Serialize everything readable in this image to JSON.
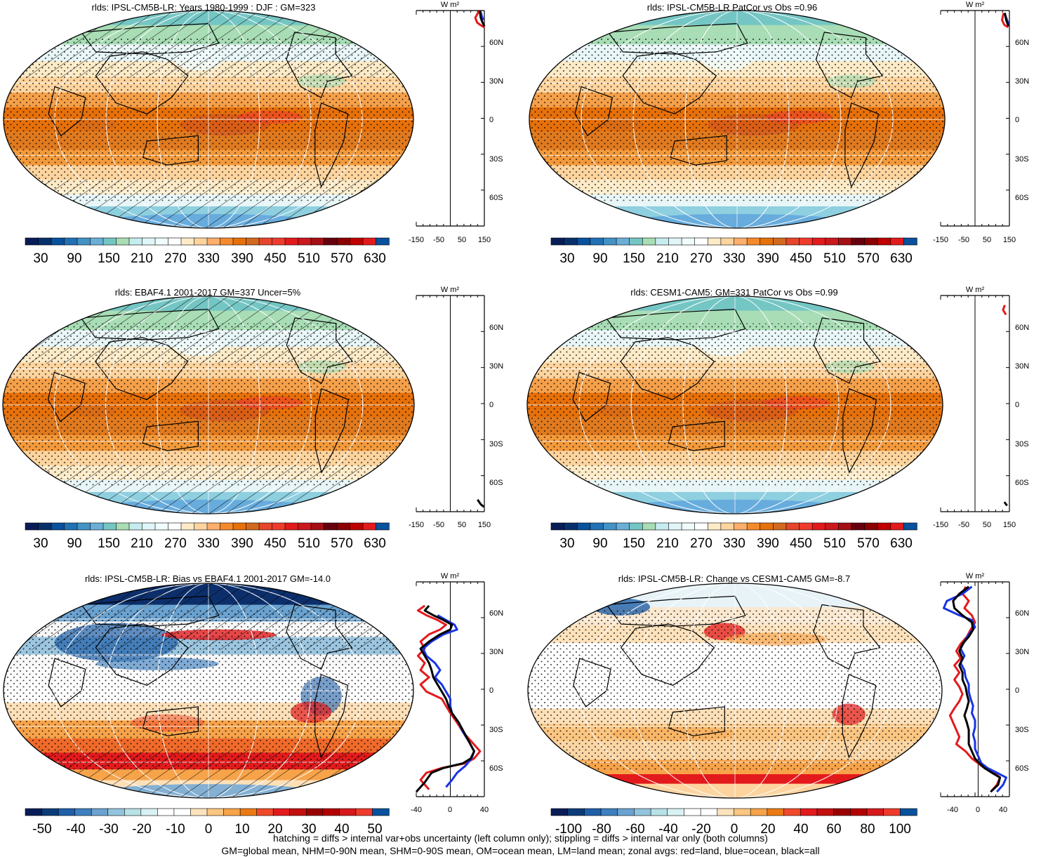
{
  "chart_data": [
    {
      "type": "map",
      "title": "rlds: IPSL-CM5B-LR: Years 1980-1999 : DJF : GM=323",
      "colorbar_labels": [
        "30",
        "90",
        "150",
        "210",
        "270",
        "330",
        "390",
        "450",
        "510",
        "570",
        "630"
      ],
      "zonal_axis": {
        "unit": "W m²",
        "x_ticks": [
          "-150",
          "-50",
          "50",
          "150"
        ],
        "xlim": [
          -150,
          150
        ]
      },
      "zonal_series": [
        {
          "color": "#e31a1c",
          "points": [
            [
              128,
              90
            ],
            [
              110,
              84
            ],
            [
              118,
              80
            ],
            [
              132,
              78
            ],
            [
              150,
              76
            ]
          ]
        },
        {
          "color": "#1a33e6",
          "points": [
            [
              132,
              90
            ],
            [
              138,
              86
            ],
            [
              145,
              82
            ]
          ]
        },
        {
          "color": "#000000",
          "points": [
            [
              130,
              90
            ],
            [
              134,
              84
            ],
            [
              142,
              80
            ],
            [
              150,
              77
            ]
          ]
        }
      ]
    },
    {
      "type": "map",
      "title": "rlds: IPSL-CM5B-LR PatCor vs Obs =0.96",
      "colorbar_labels": [
        "30",
        "90",
        "150",
        "210",
        "270",
        "330",
        "390",
        "450",
        "510",
        "570",
        "630"
      ],
      "zonal_axis": {
        "unit": "W m²",
        "x_ticks": [
          "-150",
          "-50",
          "50",
          "150"
        ],
        "xlim": [
          -150,
          150
        ]
      },
      "zonal_series": [
        {
          "color": "#e31a1c",
          "points": [
            [
              125,
              88
            ],
            [
              118,
              82
            ],
            [
              128,
              78
            ],
            [
              145,
              76
            ]
          ]
        },
        {
          "color": "#1a33e6",
          "points": [
            [
              132,
              86
            ],
            [
              140,
              82
            ],
            [
              148,
              78
            ]
          ]
        },
        {
          "color": "#000000",
          "points": [
            [
              130,
              88
            ],
            [
              136,
              82
            ],
            [
              146,
              77
            ]
          ]
        }
      ]
    },
    {
      "type": "map",
      "title": "rlds: EBAF4.1 2001-2017 GM=337 Uncer=5%",
      "colorbar_labels": [
        "30",
        "90",
        "150",
        "210",
        "270",
        "330",
        "390",
        "450",
        "510",
        "570",
        "630"
      ],
      "zonal_axis": {
        "unit": "W m²",
        "x_ticks": [
          "-150",
          "-50",
          "50",
          "150"
        ],
        "xlim": [
          -150,
          150
        ]
      },
      "zonal_series": [
        {
          "color": "#000000",
          "points": [
            [
              120,
              -80
            ],
            [
              135,
              -84
            ],
            [
              148,
              -86
            ]
          ]
        }
      ]
    },
    {
      "type": "map",
      "title": "rlds: CESM1-CAM5: GM=331 PatCor vs Obs =0.99",
      "colorbar_labels": [
        "30",
        "90",
        "150",
        "210",
        "270",
        "330",
        "390",
        "450",
        "510",
        "570",
        "630"
      ],
      "zonal_axis": {
        "unit": "W m²",
        "x_ticks": [
          "-150",
          "-50",
          "50",
          "150"
        ],
        "xlim": [
          -150,
          150
        ]
      },
      "zonal_series": [
        {
          "color": "#e31a1c",
          "points": [
            [
              130,
              82
            ],
            [
              122,
              78
            ],
            [
              135,
              74
            ]
          ]
        },
        {
          "color": "#000000",
          "points": [
            [
              128,
              -82
            ],
            [
              140,
              -85
            ]
          ]
        }
      ]
    },
    {
      "type": "map",
      "title": "rlds: IPSL-CM5B-LR: Bias vs EBAF4.1 2001-2017 GM=-14.0",
      "colorbar_labels": [
        "-50",
        "-40",
        "-30",
        "-20",
        "-10",
        "0",
        "10",
        "20",
        "30",
        "40",
        "50"
      ],
      "zonal_axis": {
        "unit": "W m²",
        "x_ticks": [
          "-40",
          "0",
          "40"
        ],
        "xlim": [
          -40,
          40
        ]
      },
      "zonal_series": [
        {
          "color": "#e31a1c",
          "points": [
            [
              -30,
              70
            ],
            [
              -38,
              66
            ],
            [
              -28,
              62
            ],
            [
              -15,
              58
            ],
            [
              -5,
              54
            ],
            [
              -12,
              50
            ],
            [
              -25,
              46
            ],
            [
              -35,
              40
            ],
            [
              -30,
              34
            ],
            [
              -38,
              28
            ],
            [
              -30,
              22
            ],
            [
              -35,
              16
            ],
            [
              -25,
              10
            ],
            [
              -35,
              4
            ],
            [
              -28,
              -2
            ],
            [
              -10,
              -8
            ],
            [
              -5,
              -14
            ],
            [
              0,
              -20
            ],
            [
              8,
              -28
            ],
            [
              15,
              -36
            ],
            [
              25,
              -44
            ],
            [
              35,
              -52
            ],
            [
              28,
              -58
            ],
            [
              18,
              -62
            ],
            [
              -10,
              -66
            ],
            [
              -28,
              -70
            ],
            [
              -35,
              -76
            ],
            [
              -25,
              -84
            ]
          ]
        },
        {
          "color": "#1a33e6",
          "points": [
            [
              -15,
              62
            ],
            [
              -5,
              58
            ],
            [
              5,
              54
            ],
            [
              8,
              50
            ],
            [
              -8,
              46
            ],
            [
              -22,
              40
            ],
            [
              -32,
              34
            ],
            [
              -28,
              28
            ],
            [
              -18,
              22
            ],
            [
              -12,
              16
            ],
            [
              -18,
              10
            ],
            [
              -10,
              4
            ],
            [
              -5,
              -2
            ],
            [
              0,
              -8
            ],
            [
              0,
              -14
            ],
            [
              2,
              -20
            ],
            [
              10,
              -28
            ],
            [
              15,
              -36
            ],
            [
              22,
              -44
            ],
            [
              28,
              -52
            ],
            [
              25,
              -58
            ],
            [
              18,
              -64
            ],
            [
              8,
              -70
            ],
            [
              2,
              -76
            ],
            [
              -5,
              -82
            ]
          ]
        },
        {
          "color": "#000000",
          "points": [
            [
              -25,
              70
            ],
            [
              -30,
              66
            ],
            [
              -20,
              62
            ],
            [
              -8,
              58
            ],
            [
              2,
              54
            ],
            [
              0,
              50
            ],
            [
              -12,
              46
            ],
            [
              -25,
              40
            ],
            [
              -35,
              34
            ],
            [
              -30,
              28
            ],
            [
              -25,
              22
            ],
            [
              -22,
              16
            ],
            [
              -20,
              10
            ],
            [
              -15,
              4
            ],
            [
              -10,
              -2
            ],
            [
              -5,
              -8
            ],
            [
              -2,
              -14
            ],
            [
              2,
              -20
            ],
            [
              10,
              -28
            ],
            [
              16,
              -36
            ],
            [
              22,
              -44
            ],
            [
              28,
              -52
            ],
            [
              24,
              -58
            ],
            [
              15,
              -62
            ],
            [
              -8,
              -66
            ],
            [
              -22,
              -70
            ],
            [
              -30,
              -78
            ],
            [
              -40,
              -86
            ]
          ]
        }
      ]
    },
    {
      "type": "map",
      "title": "rlds: IPSL-CM5B-LR: Change vs CESM1-CAM5 GM=-8.7",
      "colorbar_labels": [
        "-100",
        "-80",
        "-60",
        "-40",
        "-20",
        "0",
        "20",
        "40",
        "60",
        "80",
        "100"
      ],
      "zonal_axis": {
        "unit": "W m²",
        "x_ticks": [
          "-40",
          "0",
          "40"
        ],
        "xlim": [
          -60,
          50
        ]
      },
      "zonal_series": [
        {
          "color": "#e31a1c",
          "points": [
            [
              -20,
              86
            ],
            [
              -25,
              80
            ],
            [
              -15,
              74
            ],
            [
              -22,
              68
            ],
            [
              -10,
              62
            ],
            [
              -5,
              56
            ],
            [
              -12,
              50
            ],
            [
              -18,
              44
            ],
            [
              -28,
              38
            ],
            [
              -35,
              32
            ],
            [
              -28,
              26
            ],
            [
              -38,
              20
            ],
            [
              -30,
              14
            ],
            [
              -38,
              8
            ],
            [
              -30,
              2
            ],
            [
              -25,
              -4
            ],
            [
              -30,
              -10
            ],
            [
              -38,
              -16
            ],
            [
              -45,
              -22
            ],
            [
              -40,
              -28
            ],
            [
              -35,
              -34
            ],
            [
              -30,
              -40
            ],
            [
              -35,
              -46
            ],
            [
              -20,
              -52
            ],
            [
              -10,
              -58
            ],
            [
              0,
              -62
            ],
            [
              10,
              -66
            ],
            [
              25,
              -70
            ],
            [
              35,
              -74
            ],
            [
              30,
              -80
            ],
            [
              20,
              -86
            ]
          ]
        },
        {
          "color": "#1a33e6",
          "points": [
            [
              -10,
              86
            ],
            [
              -25,
              80
            ],
            [
              -50,
              74
            ],
            [
              -55,
              68
            ],
            [
              -30,
              62
            ],
            [
              -10,
              58
            ],
            [
              -5,
              52
            ],
            [
              -15,
              46
            ],
            [
              -22,
              40
            ],
            [
              -28,
              34
            ],
            [
              -22,
              28
            ],
            [
              -28,
              22
            ],
            [
              -22,
              16
            ],
            [
              -20,
              10
            ],
            [
              -15,
              4
            ],
            [
              -15,
              -2
            ],
            [
              -12,
              -8
            ],
            [
              -8,
              -14
            ],
            [
              -10,
              -20
            ],
            [
              -5,
              -26
            ],
            [
              -5,
              -32
            ],
            [
              -8,
              -38
            ],
            [
              -5,
              -44
            ],
            [
              -5,
              -50
            ],
            [
              0,
              -56
            ],
            [
              5,
              -62
            ],
            [
              15,
              -66
            ],
            [
              30,
              -70
            ],
            [
              45,
              -74
            ],
            [
              40,
              -80
            ],
            [
              30,
              -86
            ]
          ]
        },
        {
          "color": "#000000",
          "points": [
            [
              -15,
              86
            ],
            [
              -30,
              80
            ],
            [
              -40,
              74
            ],
            [
              -38,
              68
            ],
            [
              -25,
              62
            ],
            [
              -10,
              56
            ],
            [
              -8,
              50
            ],
            [
              -15,
              44
            ],
            [
              -25,
              38
            ],
            [
              -30,
              32
            ],
            [
              -25,
              26
            ],
            [
              -30,
              20
            ],
            [
              -25,
              14
            ],
            [
              -25,
              8
            ],
            [
              -20,
              2
            ],
            [
              -18,
              -4
            ],
            [
              -15,
              -10
            ],
            [
              -18,
              -16
            ],
            [
              -22,
              -22
            ],
            [
              -18,
              -28
            ],
            [
              -15,
              -34
            ],
            [
              -15,
              -40
            ],
            [
              -15,
              -46
            ],
            [
              -10,
              -52
            ],
            [
              -5,
              -58
            ],
            [
              2,
              -62
            ],
            [
              10,
              -66
            ],
            [
              22,
              -70
            ],
            [
              35,
              -74
            ],
            [
              32,
              -80
            ],
            [
              20,
              -86
            ]
          ]
        }
      ]
    }
  ],
  "zonal_lat_ticks": [
    "60N",
    "30N",
    "0",
    "30S",
    "60S"
  ],
  "colors": {
    "abs_palette": [
      "#081d58",
      "#08306b",
      "#08519c",
      "#2171b5",
      "#4292c6",
      "#6baed6",
      "#74c6c4",
      "#a8ddb5",
      "#c6ecf0",
      "#e0f5f8",
      "#f0fbfb",
      "#ffffff",
      "#fdebc8",
      "#fdd49e",
      "#fdae6b",
      "#f58a2c",
      "#e6700a",
      "#d2691e",
      "#e6452b",
      "#ef3b2c",
      "#e31a1c",
      "#cb181d",
      "#a50f15",
      "#67000d",
      "#8b0000",
      "#c00000",
      "#e31a1c",
      "#08519c"
    ],
    "diff_palette": [
      "#081d58",
      "#0c3c78",
      "#1f5fa8",
      "#3e7fc0",
      "#6aa2d0",
      "#93c4dd",
      "#b8e2e6",
      "#d8f1f3",
      "#ffffff",
      "#ffffff",
      "#fde3bd",
      "#fbc682",
      "#f7a34a",
      "#ec7a14",
      "#f04a2a",
      "#e31a1c",
      "#c40f0f",
      "#990000",
      "#b30000",
      "#d7191c",
      "#ef3b2c",
      "#08519c"
    ]
  },
  "footer": {
    "line1": "hatching = diffs > internal var+obs uncertainty (left column only); stippling = diffs > internal var only (both columns)",
    "line2": "GM=global mean, NHM=0-90N mean, SHM=0-90S mean, OM=ocean mean, LM=land mean; zonal avgs: red=land, blue=ocean, black=all"
  }
}
